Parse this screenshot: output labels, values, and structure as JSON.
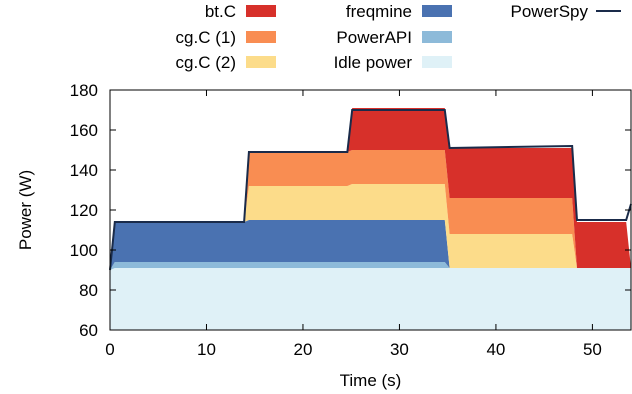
{
  "chart_data": {
    "type": "area",
    "subtype": "stacked",
    "xlabel": "Time (s)",
    "ylabel": "Power (W)",
    "xlim": [
      0,
      54
    ],
    "ylim": [
      60,
      180
    ],
    "xticks": [
      0,
      10,
      20,
      30,
      40,
      50
    ],
    "yticks": [
      60,
      80,
      100,
      120,
      140,
      160,
      180
    ],
    "grid": false,
    "legend_position": "top",
    "x": [
      0,
      0.5,
      13.9,
      14.4,
      24.6,
      25.1,
      34.7,
      35.2,
      47.9,
      48.4,
      53.5,
      54
    ],
    "series": [
      {
        "name": "Idle power",
        "color": "#dff1f7",
        "values": [
          90,
          91,
          91,
          91,
          91,
          91,
          91,
          91,
          91,
          91,
          91,
          91
        ]
      },
      {
        "name": "PowerAPI",
        "color": "#8dbad9",
        "values": [
          0,
          3,
          3,
          3,
          3,
          3,
          3,
          0,
          0,
          0,
          0,
          0
        ]
      },
      {
        "name": "freqmine",
        "color": "#4a72b1",
        "values": [
          0,
          20,
          20,
          21,
          21,
          21,
          21,
          0,
          0,
          0,
          0,
          0
        ]
      },
      {
        "name": "cg.C (2)",
        "color": "#fcdc8a",
        "values": [
          0,
          0,
          0,
          17,
          17,
          18,
          18,
          17,
          17,
          0,
          0,
          0
        ]
      },
      {
        "name": "cg.C (1)",
        "color": "#f98d52",
        "values": [
          0,
          0,
          0,
          17,
          17,
          17,
          17,
          18,
          18,
          0,
          0,
          0
        ]
      },
      {
        "name": "bt.C",
        "color": "#d7302a",
        "values": [
          0,
          0,
          0,
          0,
          0,
          21,
          21,
          25,
          25,
          23,
          23,
          0
        ]
      }
    ],
    "line_series": {
      "name": "PowerSpy",
      "color": "#1a2b4a",
      "x": [
        0,
        0.5,
        13.9,
        14.4,
        24.6,
        25.1,
        34.7,
        35.2,
        47.9,
        48.4,
        53.5,
        54
      ],
      "values": [
        90,
        114,
        114,
        149,
        149,
        170,
        170,
        151,
        152,
        115,
        115,
        123
      ]
    },
    "legend": [
      {
        "label": "bt.C",
        "color": "#d7302a",
        "kind": "box"
      },
      {
        "label": "freqmine",
        "color": "#4a72b1",
        "kind": "box"
      },
      {
        "label": "PowerSpy",
        "color": "#1a2b4a",
        "kind": "line"
      },
      {
        "label": "cg.C (1)",
        "color": "#f98d52",
        "kind": "box"
      },
      {
        "label": "PowerAPI",
        "color": "#8dbad9",
        "kind": "box"
      },
      {
        "label": "cg.C (2)",
        "color": "#fcdc8a",
        "kind": "box"
      },
      {
        "label": "Idle power",
        "color": "#dff1f7",
        "kind": "box"
      }
    ]
  }
}
